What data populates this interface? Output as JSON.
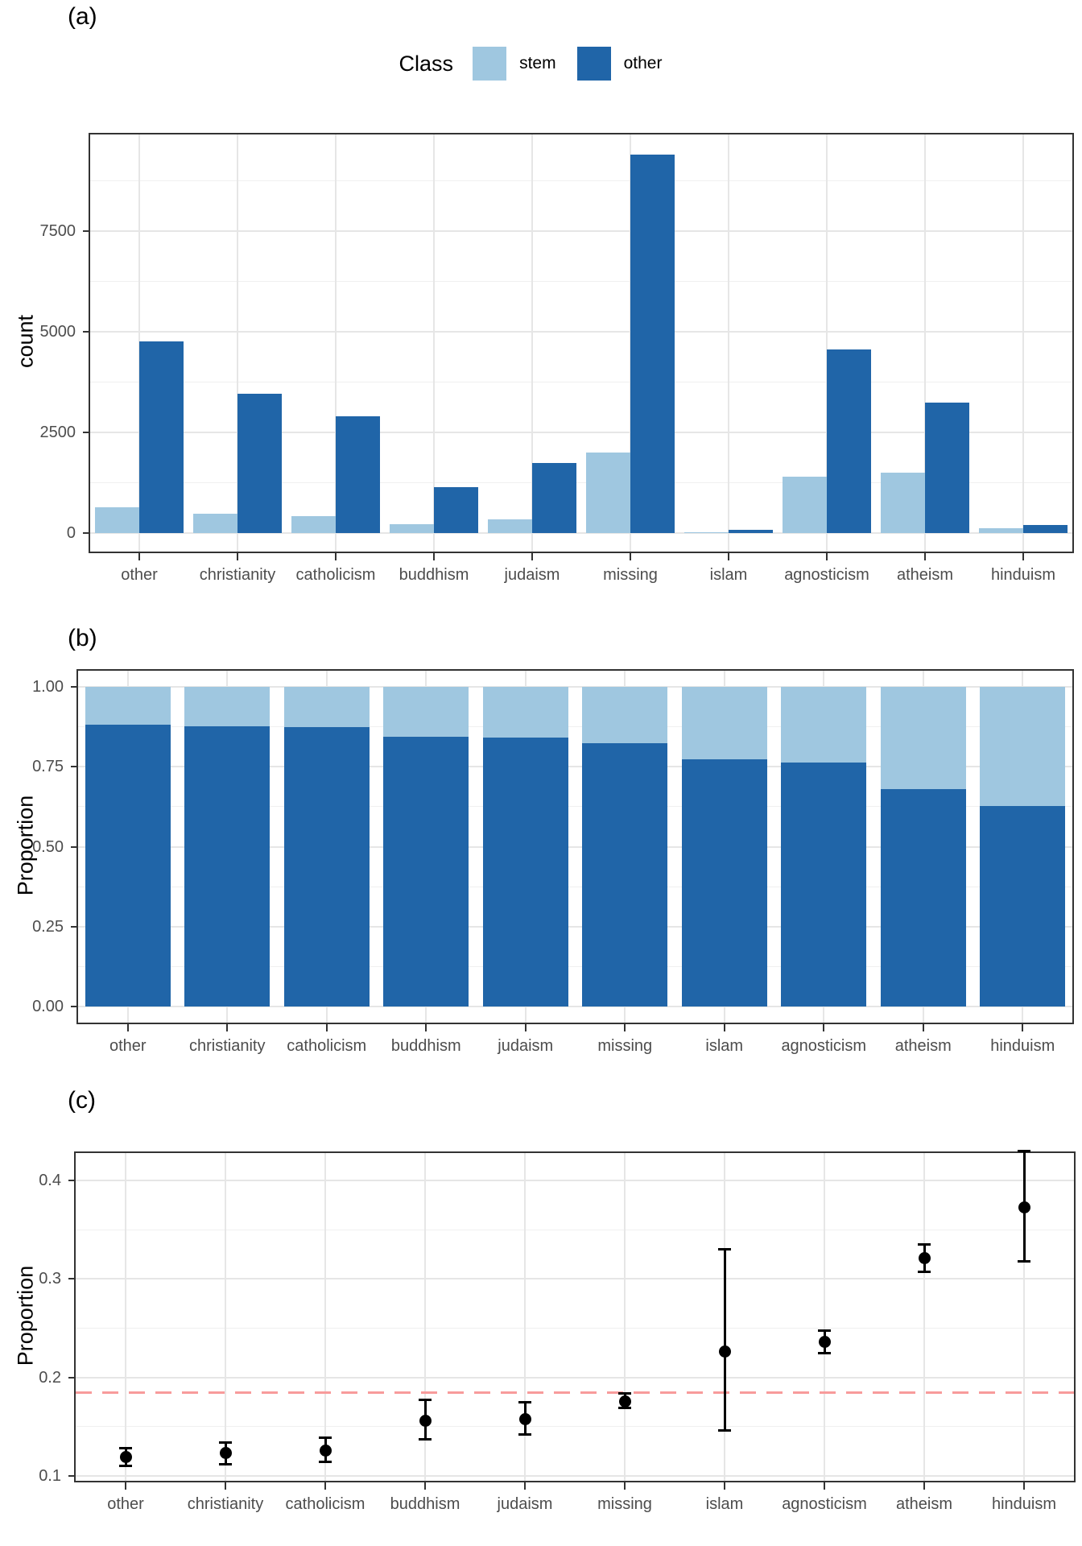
{
  "panels": {
    "a": {
      "tag": "(a)",
      "y_title": "count"
    },
    "b": {
      "tag": "(b)",
      "y_title": "Proportion"
    },
    "c": {
      "tag": "(c)",
      "y_title": "Proportion"
    }
  },
  "legend": {
    "title": "Class",
    "items": [
      {
        "label": "stem",
        "color": "#9FC7E0"
      },
      {
        "label": "other",
        "color": "#2065A8"
      }
    ]
  },
  "colors": {
    "stem": "#9FC7E0",
    "other": "#2065A8",
    "grid_major": "#e6e6e6",
    "grid_minor": "#f0f0f0",
    "panel_border": "#333333",
    "tick_text": "#4d4d4d",
    "hline": "#F89B9B",
    "point": "#000000"
  },
  "chart_data": [
    {
      "panel": "a",
      "type": "bar",
      "mode": "grouped",
      "ylabel": "count",
      "legend_title": "Class",
      "legend_position": "top",
      "grid": true,
      "categories": [
        "other",
        "christianity",
        "catholicism",
        "buddhism",
        "judaism",
        "missing",
        "islam",
        "agnosticism",
        "atheism",
        "hinduism"
      ],
      "series": [
        {
          "name": "stem",
          "color_key": "stem",
          "values": [
            640,
            480,
            420,
            210,
            325,
            2000,
            20,
            1400,
            1500,
            110
          ]
        },
        {
          "name": "other",
          "color_key": "other",
          "values": [
            4760,
            3460,
            2890,
            1140,
            1740,
            9400,
            70,
            4560,
            3230,
            185
          ]
        }
      ],
      "yticks": [
        0,
        2500,
        5000,
        7500
      ],
      "ytick_labels": [
        "0",
        "2500",
        "5000",
        "7500"
      ],
      "yminor": [
        1250,
        3750,
        6250,
        8750
      ],
      "ylim": [
        -470,
        9890
      ]
    },
    {
      "panel": "b",
      "type": "bar",
      "mode": "stacked",
      "ylabel": "Proportion",
      "grid": true,
      "categories": [
        "other",
        "christianity",
        "catholicism",
        "buddhism",
        "judaism",
        "missing",
        "islam",
        "agnosticism",
        "atheism",
        "hinduism"
      ],
      "series": [
        {
          "name": "other",
          "color_key": "other",
          "values": [
            0.881,
            0.877,
            0.874,
            0.844,
            0.842,
            0.824,
            0.774,
            0.764,
            0.679,
            0.626
          ]
        },
        {
          "name": "stem",
          "color_key": "stem",
          "values": [
            0.119,
            0.123,
            0.126,
            0.156,
            0.158,
            0.176,
            0.226,
            0.236,
            0.321,
            0.374
          ]
        }
      ],
      "yticks": [
        0,
        0.25,
        0.5,
        0.75,
        1
      ],
      "ytick_labels": [
        "0.00",
        "0.25",
        "0.50",
        "0.75",
        "1.00"
      ],
      "yminor": [
        0.125,
        0.375,
        0.625,
        0.875
      ],
      "ylim": [
        -0.05,
        1.05
      ]
    },
    {
      "panel": "c",
      "type": "pointrange",
      "ylabel": "Proportion",
      "grid": true,
      "categories": [
        "other",
        "christianity",
        "catholicism",
        "buddhism",
        "judaism",
        "missing",
        "islam",
        "agnosticism",
        "atheism",
        "hinduism"
      ],
      "points": {
        "values": [
          0.119,
          0.123,
          0.126,
          0.156,
          0.158,
          0.176,
          0.226,
          0.236,
          0.321,
          0.373
        ],
        "ci_low": [
          0.11,
          0.112,
          0.114,
          0.137,
          0.142,
          0.169,
          0.146,
          0.225,
          0.307,
          0.318
        ],
        "ci_high": [
          0.128,
          0.134,
          0.139,
          0.177,
          0.175,
          0.184,
          0.33,
          0.248,
          0.335,
          0.43
        ]
      },
      "yticks": [
        0.1,
        0.2,
        0.3,
        0.4
      ],
      "ytick_labels": [
        "0.1",
        "0.2",
        "0.3",
        "0.4"
      ],
      "yminor": [
        0.15,
        0.25,
        0.35
      ],
      "ylim": [
        0.095,
        0.428
      ],
      "hline": {
        "value": 0.185,
        "style": "dashed",
        "color_key": "hline"
      }
    }
  ]
}
